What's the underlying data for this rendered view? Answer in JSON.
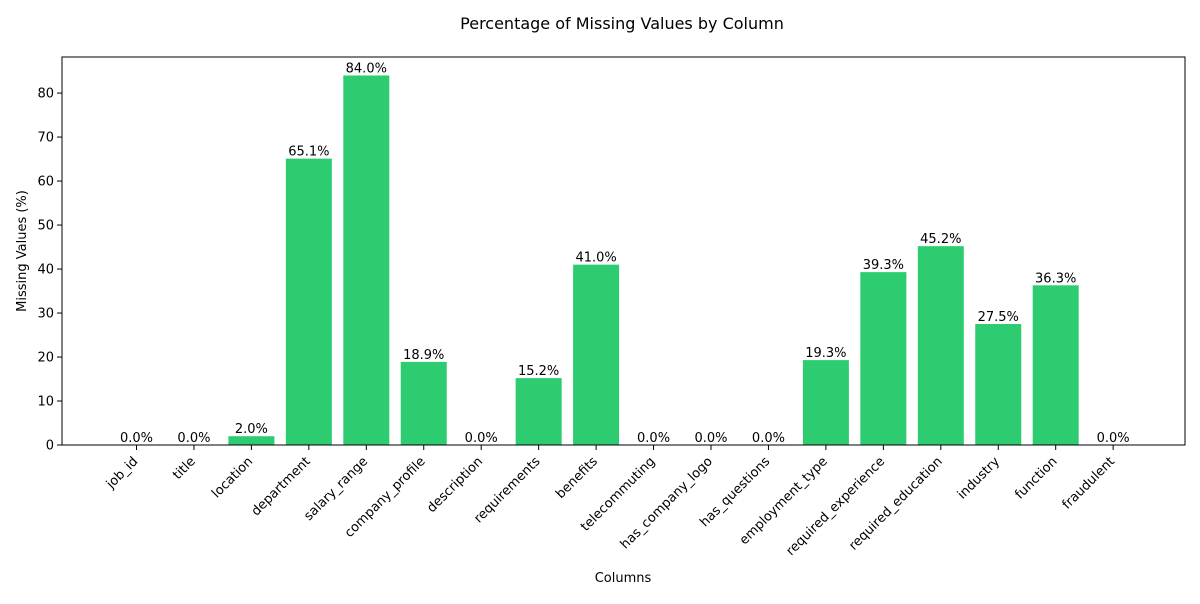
{
  "chart_data": {
    "type": "bar",
    "title": "Percentage of Missing Values by Column",
    "xlabel": "Columns",
    "ylabel": "Missing Values (%)",
    "categories": [
      "job_id",
      "title",
      "location",
      "department",
      "salary_range",
      "company_profile",
      "description",
      "requirements",
      "benefits",
      "telecommuting",
      "has_company_logo",
      "has_questions",
      "employment_type",
      "required_experience",
      "required_education",
      "industry",
      "function",
      "fraudulent"
    ],
    "values": [
      0.0,
      0.0,
      2.0,
      65.1,
      84.0,
      18.9,
      0.0,
      15.2,
      41.0,
      0.0,
      0.0,
      0.0,
      19.3,
      39.3,
      45.2,
      27.5,
      36.3,
      0.0
    ],
    "data_labels": [
      "0.0%",
      "0.0%",
      "2.0%",
      "65.1%",
      "84.0%",
      "18.9%",
      "0.0%",
      "15.2%",
      "41.0%",
      "0.0%",
      "0.0%",
      "0.0%",
      "19.3%",
      "39.3%",
      "45.2%",
      "27.5%",
      "36.3%",
      "0.0%"
    ],
    "ylim": [
      0,
      88.2
    ],
    "yticks": [
      0,
      10,
      20,
      30,
      40,
      50,
      60,
      70,
      80
    ],
    "bar_color": "#2ecc71",
    "grid": false,
    "legend": "none"
  }
}
